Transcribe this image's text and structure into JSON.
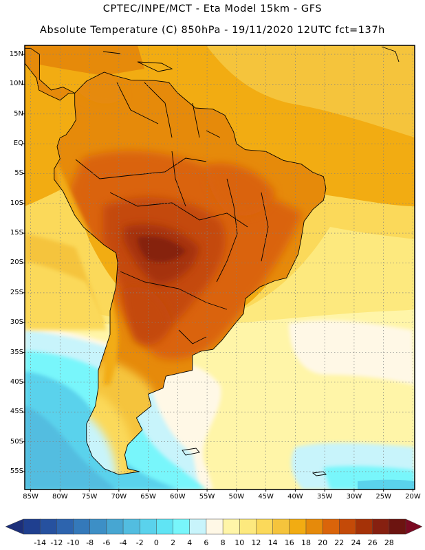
{
  "title_line1": "CPTEC/INPE/MCT -  Eta Model 15km - GFS",
  "title_line2": "Absolute Temperature (C) 850hPa - 19/11/2020 12UTC fct=137h",
  "lat_labels": [
    "15N",
    "10N",
    "5N",
    "EQ",
    "5S",
    "10S",
    "15S",
    "20S",
    "25S",
    "30S",
    "35S",
    "40S",
    "45S",
    "50S",
    "55S"
  ],
  "lat_values": [
    15,
    10,
    5,
    0,
    -5,
    -10,
    -15,
    -20,
    -25,
    -30,
    -35,
    -40,
    -45,
    -50,
    -55
  ],
  "lon_labels": [
    "85W",
    "80W",
    "75W",
    "70W",
    "65W",
    "60W",
    "55W",
    "50W",
    "45W",
    "40W",
    "35W",
    "30W",
    "25W",
    "20W"
  ],
  "lon_values": [
    -85,
    -80,
    -75,
    -70,
    -65,
    -60,
    -55,
    -50,
    -45,
    -40,
    -35,
    -30,
    -25,
    -20
  ],
  "colorbar": {
    "labels": [
      "-14",
      "-12",
      "-10",
      "-8",
      "-6",
      "-4",
      "-2",
      "0",
      "2",
      "4",
      "6",
      "8",
      "10",
      "12",
      "14",
      "16",
      "18",
      "20",
      "22",
      "24",
      "26",
      "28"
    ],
    "colors": [
      "#1f3f8f",
      "#26519f",
      "#2d64ae",
      "#3479ba",
      "#3d8fc6",
      "#47a6d2",
      "#52bde0",
      "#5ad2ec",
      "#60e4f4",
      "#78f6fb",
      "#c8f4fb",
      "#fff8e6",
      "#fff5a8",
      "#fde97e",
      "#fbd95a",
      "#f5c43c",
      "#f2ac12",
      "#e68a0a",
      "#da640a",
      "#c44a08",
      "#a53208",
      "#862010",
      "#6c1410"
    ],
    "left_arrow_color": "#1c2f7a",
    "right_arrow_color": "#7a0a22"
  },
  "colors": {
    "background": "#ffffff",
    "frame": "#000000",
    "coast": "#000000"
  }
}
